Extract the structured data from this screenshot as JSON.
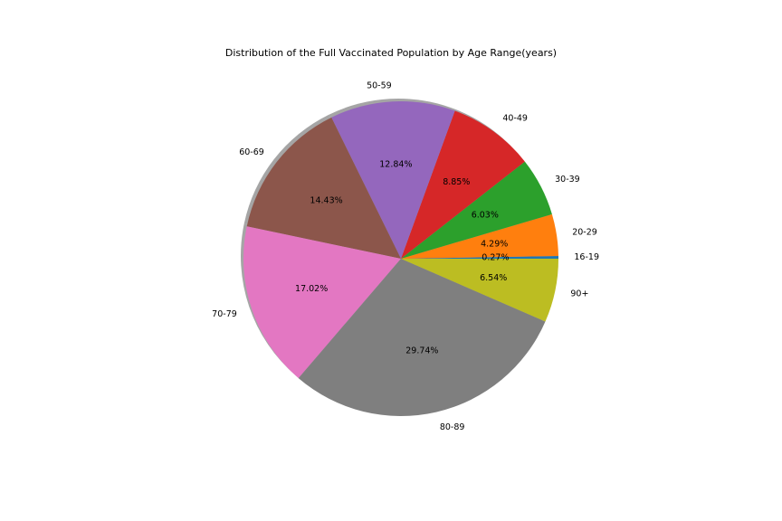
{
  "chart_data": {
    "type": "pie",
    "title": "Distribution of the Full Vaccinated Population by Age Range(years)",
    "slices": [
      {
        "label": "16-19",
        "value": 0.27,
        "pct_label": "0.27%",
        "color": "#1f77b4"
      },
      {
        "label": "20-29",
        "value": 4.29,
        "pct_label": "4.29%",
        "color": "#ff7f0e"
      },
      {
        "label": "30-39",
        "value": 6.03,
        "pct_label": "6.03%",
        "color": "#2ca02c"
      },
      {
        "label": "40-49",
        "value": 8.85,
        "pct_label": "8.85%",
        "color": "#d62728"
      },
      {
        "label": "50-59",
        "value": 12.84,
        "pct_label": "12.84%",
        "color": "#9467bd"
      },
      {
        "label": "60-69",
        "value": 14.43,
        "pct_label": "14.43%",
        "color": "#8c564b"
      },
      {
        "label": "70-79",
        "value": 17.02,
        "pct_label": "17.02%",
        "color": "#e377c2"
      },
      {
        "label": "80-89",
        "value": 29.74,
        "pct_label": "29.74%",
        "color": "#7f7f7f"
      },
      {
        "label": "90+",
        "value": 6.54,
        "pct_label": "6.54%",
        "color": "#bcbd22"
      }
    ],
    "start_angle": 0,
    "direction": "counterclockwise",
    "shadow": true,
    "legend": "none"
  }
}
